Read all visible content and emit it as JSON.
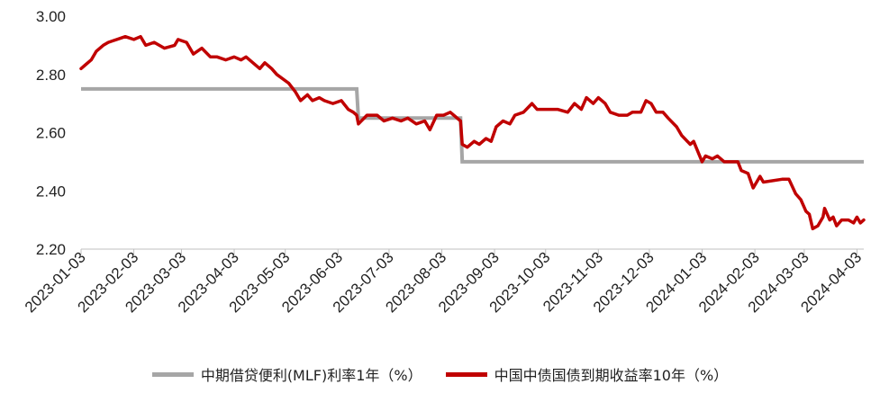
{
  "chart_data": {
    "type": "line",
    "title": "",
    "xlabel": "",
    "ylabel": "",
    "ylim": [
      2.2,
      3.0
    ],
    "yticks": [
      "2.20",
      "2.40",
      "2.60",
      "2.80",
      "3.00"
    ],
    "xticks": [
      "2023-01-03",
      "2023-02-03",
      "2023-03-03",
      "2023-04-03",
      "2023-05-03",
      "2023-06-03",
      "2023-07-03",
      "2023-08-03",
      "2023-09-03",
      "2023-10-03",
      "2023-11-03",
      "2023-12-03",
      "2024-01-03",
      "2024-02-03",
      "2024-03-03",
      "2024-04-03"
    ],
    "legend_position": "bottom",
    "series": [
      {
        "name": "中期借贷便利(MLF)利率1年（%）",
        "color": "#a6a6a6",
        "points": [
          [
            "2023-01-03",
            2.75
          ],
          [
            "2023-06-14",
            2.75
          ],
          [
            "2023-06-15",
            2.65
          ],
          [
            "2023-08-14",
            2.65
          ],
          [
            "2023-08-15",
            2.5
          ],
          [
            "2024-04-07",
            2.5
          ]
        ]
      },
      {
        "name": "中国中债国债到期收益率10年（%）",
        "color": "#c00000",
        "points": [
          [
            "2023-01-03",
            2.82
          ],
          [
            "2023-01-05",
            2.83
          ],
          [
            "2023-01-09",
            2.85
          ],
          [
            "2023-01-12",
            2.88
          ],
          [
            "2023-01-16",
            2.9
          ],
          [
            "2023-01-19",
            2.91
          ],
          [
            "2023-01-29",
            2.93
          ],
          [
            "2023-02-03",
            2.92
          ],
          [
            "2023-02-07",
            2.93
          ],
          [
            "2023-02-10",
            2.9
          ],
          [
            "2023-02-15",
            2.91
          ],
          [
            "2023-02-21",
            2.89
          ],
          [
            "2023-02-27",
            2.9
          ],
          [
            "2023-03-01",
            2.92
          ],
          [
            "2023-03-06",
            2.91
          ],
          [
            "2023-03-10",
            2.87
          ],
          [
            "2023-03-15",
            2.89
          ],
          [
            "2023-03-20",
            2.86
          ],
          [
            "2023-03-24",
            2.86
          ],
          [
            "2023-03-29",
            2.85
          ],
          [
            "2023-04-03",
            2.86
          ],
          [
            "2023-04-07",
            2.85
          ],
          [
            "2023-04-10",
            2.86
          ],
          [
            "2023-04-14",
            2.84
          ],
          [
            "2023-04-18",
            2.82
          ],
          [
            "2023-04-21",
            2.84
          ],
          [
            "2023-04-25",
            2.82
          ],
          [
            "2023-04-28",
            2.8
          ],
          [
            "2023-05-05",
            2.77
          ],
          [
            "2023-05-09",
            2.74
          ],
          [
            "2023-05-12",
            2.71
          ],
          [
            "2023-05-16",
            2.73
          ],
          [
            "2023-05-19",
            2.71
          ],
          [
            "2023-05-23",
            2.72
          ],
          [
            "2023-05-26",
            2.71
          ],
          [
            "2023-05-31",
            2.7
          ],
          [
            "2023-06-05",
            2.71
          ],
          [
            "2023-06-09",
            2.68
          ],
          [
            "2023-06-12",
            2.67
          ],
          [
            "2023-06-14",
            2.66
          ],
          [
            "2023-06-15",
            2.63
          ],
          [
            "2023-06-20",
            2.66
          ],
          [
            "2023-06-26",
            2.66
          ],
          [
            "2023-06-30",
            2.64
          ],
          [
            "2023-07-05",
            2.65
          ],
          [
            "2023-07-10",
            2.64
          ],
          [
            "2023-07-14",
            2.65
          ],
          [
            "2023-07-19",
            2.63
          ],
          [
            "2023-07-24",
            2.64
          ],
          [
            "2023-07-27",
            2.61
          ],
          [
            "2023-07-31",
            2.66
          ],
          [
            "2023-08-04",
            2.66
          ],
          [
            "2023-08-08",
            2.67
          ],
          [
            "2023-08-14",
            2.64
          ],
          [
            "2023-08-15",
            2.56
          ],
          [
            "2023-08-18",
            2.55
          ],
          [
            "2023-08-22",
            2.57
          ],
          [
            "2023-08-25",
            2.56
          ],
          [
            "2023-08-29",
            2.58
          ],
          [
            "2023-09-01",
            2.57
          ],
          [
            "2023-09-04",
            2.62
          ],
          [
            "2023-09-08",
            2.64
          ],
          [
            "2023-09-12",
            2.63
          ],
          [
            "2023-09-15",
            2.66
          ],
          [
            "2023-09-20",
            2.67
          ],
          [
            "2023-09-25",
            2.7
          ],
          [
            "2023-09-28",
            2.68
          ],
          [
            "2023-10-10",
            2.68
          ],
          [
            "2023-10-16",
            2.67
          ],
          [
            "2023-10-20",
            2.7
          ],
          [
            "2023-10-24",
            2.68
          ],
          [
            "2023-10-27",
            2.72
          ],
          [
            "2023-10-31",
            2.7
          ],
          [
            "2023-11-03",
            2.72
          ],
          [
            "2023-11-07",
            2.7
          ],
          [
            "2023-11-10",
            2.67
          ],
          [
            "2023-11-15",
            2.66
          ],
          [
            "2023-11-20",
            2.66
          ],
          [
            "2023-11-23",
            2.67
          ],
          [
            "2023-11-28",
            2.67
          ],
          [
            "2023-12-01",
            2.71
          ],
          [
            "2023-12-04",
            2.7
          ],
          [
            "2023-12-07",
            2.67
          ],
          [
            "2023-12-11",
            2.67
          ],
          [
            "2023-12-14",
            2.65
          ],
          [
            "2023-12-19",
            2.62
          ],
          [
            "2023-12-22",
            2.59
          ],
          [
            "2023-12-27",
            2.56
          ],
          [
            "2023-12-29",
            2.57
          ],
          [
            "2024-01-03",
            2.5
          ],
          [
            "2024-01-05",
            2.52
          ],
          [
            "2024-01-09",
            2.51
          ],
          [
            "2024-01-12",
            2.52
          ],
          [
            "2024-01-16",
            2.5
          ],
          [
            "2024-01-19",
            2.5
          ],
          [
            "2024-01-24",
            2.5
          ],
          [
            "2024-01-26",
            2.47
          ],
          [
            "2024-01-30",
            2.46
          ],
          [
            "2024-02-02",
            2.41
          ],
          [
            "2024-02-06",
            2.45
          ],
          [
            "2024-02-08",
            2.43
          ],
          [
            "2024-02-19",
            2.44
          ],
          [
            "2024-02-23",
            2.44
          ],
          [
            "2024-02-27",
            2.39
          ],
          [
            "2024-03-01",
            2.37
          ],
          [
            "2024-03-04",
            2.33
          ],
          [
            "2024-03-06",
            2.32
          ],
          [
            "2024-03-08",
            2.27
          ],
          [
            "2024-03-11",
            2.28
          ],
          [
            "2024-03-14",
            2.31
          ],
          [
            "2024-03-15",
            2.34
          ],
          [
            "2024-03-18",
            2.3
          ],
          [
            "2024-03-20",
            2.31
          ],
          [
            "2024-03-22",
            2.28
          ],
          [
            "2024-03-25",
            2.3
          ],
          [
            "2024-03-27",
            2.3
          ],
          [
            "2024-03-29",
            2.3
          ],
          [
            "2024-04-01",
            2.29
          ],
          [
            "2024-04-03",
            2.31
          ],
          [
            "2024-04-05",
            2.29
          ],
          [
            "2024-04-07",
            2.3
          ]
        ]
      }
    ]
  }
}
